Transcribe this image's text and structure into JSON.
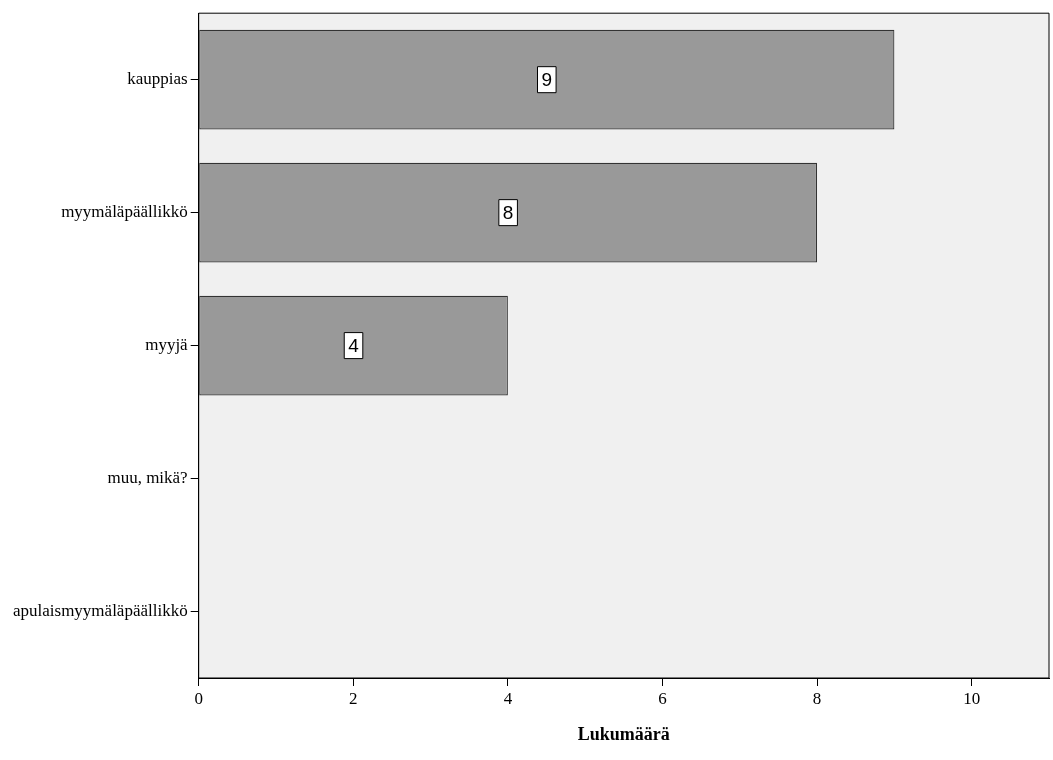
{
  "chart_data": {
    "type": "bar",
    "orientation": "horizontal",
    "xlabel": "Lukumäärä",
    "categories": [
      "kauppias",
      "myymäläpäällikkö",
      "myyjä",
      "muu, mikä?",
      "apulaismyymäläpäällikkö"
    ],
    "values": [
      9,
      8,
      4,
      0,
      0
    ],
    "color": "#999999",
    "value_labels": [
      "9",
      "8",
      "4",
      null,
      null
    ],
    "xlim": [
      0,
      11
    ],
    "xticks": [
      0,
      2,
      4,
      6,
      8,
      10
    ],
    "grid": false,
    "legend": false
  }
}
